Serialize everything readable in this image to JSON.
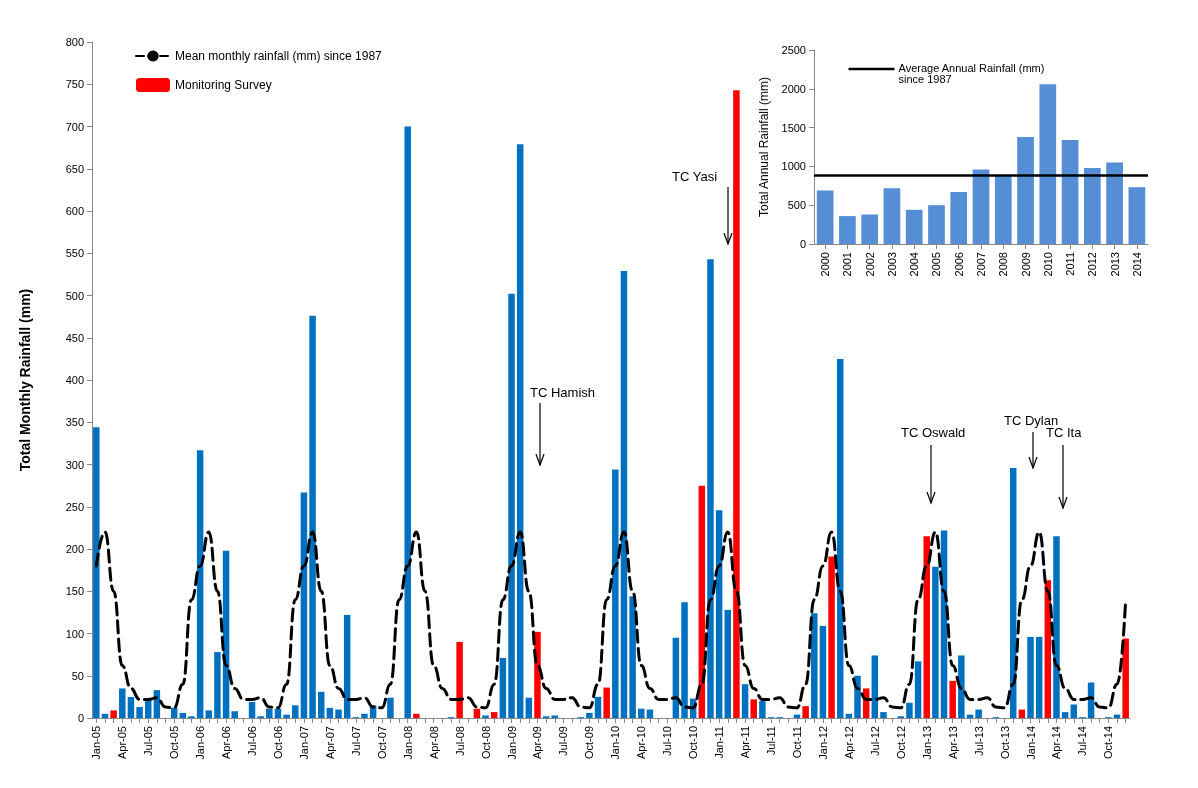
{
  "chart_data": [
    {
      "type": "bar",
      "ylabel": "Total Monthly Rainfall (mm)",
      "stacked": true,
      "legend": "top left",
      "grid": false,
      "ylim": [
        0,
        800
      ],
      "yticks": [
        0,
        50,
        100,
        150,
        200,
        250,
        300,
        350,
        400,
        450,
        500,
        550,
        600,
        650,
        700,
        750,
        800
      ],
      "categories": [
        "Jan-05",
        null,
        null,
        "Apr-05",
        null,
        null,
        "Jul-05",
        null,
        null,
        "Oct-05",
        null,
        null,
        "Jan-06",
        null,
        null,
        "Apr-06",
        null,
        null,
        "Jul-06",
        null,
        null,
        "Oct-06",
        null,
        null,
        "Jan-07",
        null,
        null,
        "Apr-07",
        null,
        null,
        "Jul-07",
        null,
        null,
        "Oct-07",
        null,
        null,
        "Jan-08",
        null,
        null,
        "Apr-08",
        null,
        null,
        "Jul-08",
        null,
        null,
        "Oct-08",
        null,
        null,
        "Jan-09",
        null,
        null,
        "Apr-09",
        null,
        null,
        "Jul-09",
        null,
        null,
        "Oct-09",
        null,
        null,
        "Jan-10",
        null,
        null,
        "Apr-10",
        null,
        null,
        "Jul-10",
        null,
        null,
        "Oct-10",
        null,
        null,
        "Jan-11",
        null,
        null,
        "Apr-11",
        null,
        null,
        "Jul-11",
        null,
        null,
        "Oct-11",
        null,
        null,
        "Jan-12",
        null,
        null,
        "Apr-12",
        null,
        null,
        "Jul-12",
        null,
        null,
        "Oct-12",
        null,
        null,
        "Jan-13",
        null,
        null,
        "Apr-13",
        null,
        null,
        "Jul-13",
        null,
        null,
        "Oct-13",
        null,
        null,
        "Jan-14",
        null,
        null,
        "Apr-14",
        null,
        null,
        "Jul-14",
        null,
        null,
        "Oct-14",
        null,
        null
      ],
      "series": [
        {
          "name": "Mean monthly rainfall (mm) since 1987",
          "type": "line",
          "color": "#000000",
          "line_style": "dashed",
          "marker": "none",
          "values": [
            180,
            220,
            150,
            62,
            35,
            22,
            22,
            24,
            13,
            12,
            40,
            140,
            180,
            220,
            150,
            62,
            35,
            22,
            22,
            24,
            13,
            12,
            40,
            140,
            180,
            220,
            150,
            62,
            35,
            22,
            22,
            24,
            13,
            12,
            40,
            140,
            180,
            220,
            150,
            62,
            35,
            22,
            22,
            24,
            13,
            12,
            40,
            140,
            180,
            220,
            150,
            62,
            35,
            22,
            22,
            24,
            13,
            12,
            40,
            140,
            180,
            220,
            150,
            62,
            35,
            22,
            22,
            24,
            13,
            12,
            40,
            140,
            180,
            220,
            150,
            62,
            35,
            22,
            22,
            24,
            13,
            12,
            40,
            140,
            180,
            220,
            150,
            62,
            35,
            22,
            22,
            24,
            13,
            12,
            40,
            140,
            180,
            220,
            150,
            62,
            35,
            22,
            22,
            24,
            13,
            12,
            40,
            140,
            180,
            220,
            150,
            62,
            35,
            22,
            22,
            24,
            13,
            12,
            40,
            140
          ]
        },
        {
          "color": "#0070c0",
          "values": [
            344,
            5,
            null,
            35,
            25,
            13,
            21,
            33,
            0,
            12,
            6,
            2,
            317,
            9,
            78,
            198,
            8,
            0,
            19,
            2,
            11,
            11,
            4,
            15,
            267,
            476,
            31,
            12,
            10,
            122,
            1,
            5,
            15,
            0,
            24,
            0,
            700,
            null,
            0,
            0,
            0,
            1,
            null,
            0,
            null,
            3,
            null,
            71,
            502,
            679,
            24,
            null,
            2,
            3,
            0,
            0,
            1,
            6,
            25,
            null,
            294,
            529,
            144,
            11,
            10,
            0,
            0,
            95,
            137,
            23,
            null,
            543,
            246,
            128,
            null,
            40,
            null,
            20,
            1,
            1,
            0,
            4,
            null,
            124,
            109,
            null,
            425,
            5,
            50,
            null,
            74,
            7,
            0,
            2,
            18,
            67,
            null,
            179,
            222,
            null,
            74,
            4,
            10,
            0,
            1,
            0,
            296,
            null,
            96,
            96,
            null,
            215,
            7,
            16,
            1,
            42,
            0,
            1,
            4,
            null
          ]
        },
        {
          "name": "Monitoring Survey",
          "color": "#ff0000",
          "values": [
            null,
            null,
            9,
            null,
            null,
            null,
            null,
            null,
            null,
            null,
            null,
            null,
            null,
            null,
            null,
            null,
            null,
            null,
            null,
            null,
            null,
            null,
            null,
            null,
            null,
            null,
            null,
            null,
            null,
            null,
            null,
            null,
            null,
            null,
            null,
            null,
            null,
            5,
            null,
            null,
            null,
            null,
            90,
            null,
            11,
            null,
            7,
            null,
            null,
            null,
            null,
            102,
            null,
            null,
            null,
            null,
            null,
            null,
            null,
            36,
            null,
            null,
            null,
            null,
            null,
            null,
            null,
            null,
            null,
            null,
            275,
            null,
            null,
            null,
            743,
            null,
            22,
            null,
            null,
            null,
            null,
            null,
            14,
            null,
            null,
            191,
            null,
            null,
            null,
            35,
            null,
            null,
            null,
            null,
            null,
            null,
            215,
            null,
            null,
            44,
            null,
            null,
            null,
            null,
            null,
            null,
            null,
            10,
            null,
            null,
            163,
            null,
            null,
            null,
            null,
            null,
            null,
            null,
            null,
            94
          ]
        }
      ],
      "annotations": [
        "TC Hamish",
        "TC Yasi",
        "TC Oswald",
        "TC Dylan",
        "TC Ita"
      ]
    },
    {
      "type": "bar",
      "ylabel": "Total Annual Rainfall (mm)",
      "grid": false,
      "ylim": [
        0,
        2500
      ],
      "yticks": [
        0,
        500,
        1000,
        1500,
        2000,
        2500
      ],
      "categories": [
        "2000",
        "2001",
        "2002",
        "2003",
        "2004",
        "2005",
        "2006",
        "2007",
        "2008",
        "2009",
        "2010",
        "2011",
        "2012",
        "2013",
        "2014"
      ],
      "values": [
        690,
        360,
        380,
        720,
        440,
        500,
        670,
        960,
        890,
        1380,
        2060,
        1340,
        980,
        1050,
        730
      ],
      "color": "#558ed5",
      "ref_lines": [
        {
          "axis": "y",
          "value": 890,
          "label": "Average Annual Rainfall (mm) since 1987",
          "color": "#000000"
        }
      ]
    }
  ]
}
